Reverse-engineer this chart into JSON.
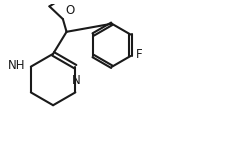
{
  "background": "#ffffff",
  "line_color": "#1a1a1a",
  "line_width": 1.5,
  "font_size": 8.5,
  "fig_width": 2.53,
  "fig_height": 1.47,
  "dpi": 100,
  "xlim": [
    0,
    10
  ],
  "ylim": [
    0,
    5.8
  ]
}
